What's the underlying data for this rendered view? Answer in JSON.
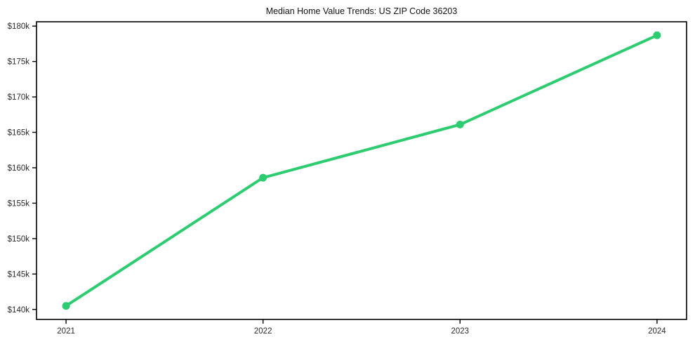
{
  "chart_data": {
    "type": "line",
    "title": "Median Home Value Trends: US ZIP Code 36203",
    "x": [
      2021,
      2022,
      2023,
      2024
    ],
    "x_tick_labels": [
      "2021",
      "2022",
      "2023",
      "2024"
    ],
    "series": [
      {
        "name": "Median Home Value",
        "values": [
          140500,
          158600,
          166100,
          178700
        ],
        "color": "#2ecc71",
        "marker": "circle",
        "line_width": 4,
        "marker_radius": 5.5
      }
    ],
    "y_ticks": [
      140000,
      145000,
      150000,
      155000,
      160000,
      165000,
      170000,
      175000,
      180000
    ],
    "y_tick_labels": [
      "$140k",
      "$145k",
      "$150k",
      "$155k",
      "$160k",
      "$165k",
      "$170k",
      "$175k",
      "$180k"
    ],
    "xlim": [
      2020.85,
      2024.15
    ],
    "ylim": [
      138590,
      180610
    ],
    "xlabel": "",
    "ylabel": "",
    "grid": false,
    "legend": "none",
    "plot_background": "#ffffff"
  },
  "colors": {
    "line": "#2ecc71",
    "axis": "#000000",
    "tick_label": "#2b2b2b",
    "title": "#111111",
    "background": "#ffffff"
  }
}
